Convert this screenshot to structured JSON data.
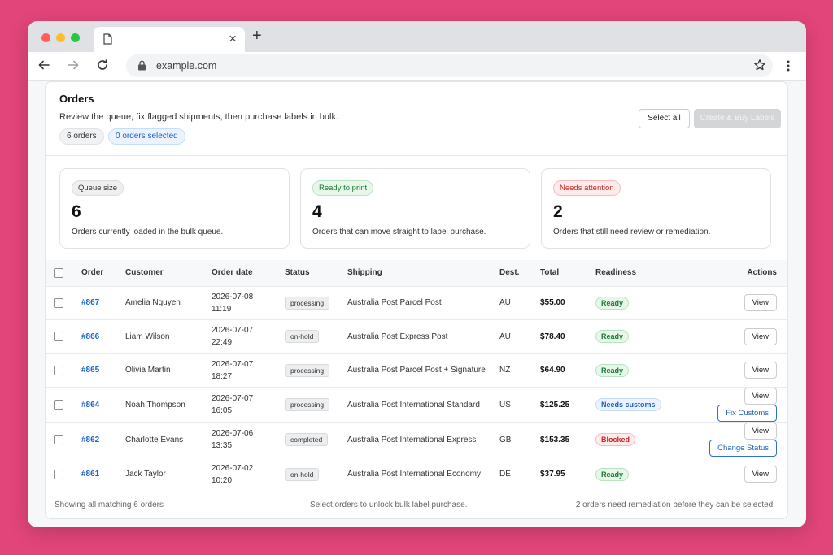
{
  "browser": {
    "tab_title": "",
    "url": "example.com",
    "icons": [
      "doc-icon",
      "close-icon",
      "plus-icon",
      "back-arrow-icon",
      "forward-arrow-icon",
      "reload-icon",
      "lock-icon",
      "star-icon",
      "kebab-menu-icon"
    ]
  },
  "header": {
    "title": "Orders",
    "subtitle": "Review the queue, fix flagged shipments, then purchase labels in bulk.",
    "count_pill": "6 orders",
    "selected_pill": "0 orders selected",
    "select_all_label": "Select all",
    "buy_label": "Create & Buy Labels"
  },
  "stats": [
    {
      "tag": "Queue size",
      "value": "6",
      "desc": "Orders currently loaded in the bulk queue."
    },
    {
      "tag": "Ready to print",
      "value": "4",
      "desc": "Orders that can move straight to label purchase."
    },
    {
      "tag": "Needs attention",
      "value": "2",
      "desc": "Orders that still need review or remediation."
    }
  ],
  "table": {
    "headers": {
      "order": "Order",
      "customer": "Customer",
      "date": "Order date",
      "status": "Status",
      "shipping": "Shipping",
      "dest": "Dest.",
      "total": "Total",
      "readiness": "Readiness",
      "actions": "Actions"
    },
    "rows": [
      {
        "order": "#867",
        "customer": "Amelia Nguyen",
        "date": "2026-07-08",
        "time": "11:19",
        "status": "processing",
        "shipping": "Australia Post Parcel Post",
        "dest": "AU",
        "total": "$55.00",
        "readiness": "Ready",
        "view": "View",
        "extra": ""
      },
      {
        "order": "#866",
        "customer": "Liam Wilson",
        "date": "2026-07-07",
        "time": "22:49",
        "status": "on-hold",
        "shipping": "Australia Post Express Post",
        "dest": "AU",
        "total": "$78.40",
        "readiness": "Ready",
        "view": "View",
        "extra": ""
      },
      {
        "order": "#865",
        "customer": "Olivia Martin",
        "date": "2026-07-07",
        "time": "18:27",
        "status": "processing",
        "shipping": "Australia Post Parcel Post + Signature",
        "dest": "NZ",
        "total": "$64.90",
        "readiness": "Ready",
        "view": "View",
        "extra": ""
      },
      {
        "order": "#864",
        "customer": "Noah Thompson",
        "date": "2026-07-07",
        "time": "16:05",
        "status": "processing",
        "shipping": "Australia Post International Standard",
        "dest": "US",
        "total": "$125.25",
        "readiness": "Needs customs",
        "view": "View",
        "extra": "Fix Customs"
      },
      {
        "order": "#862",
        "customer": "Charlotte Evans",
        "date": "2026-07-06",
        "time": "13:35",
        "status": "completed",
        "shipping": "Australia Post International Express",
        "dest": "GB",
        "total": "$153.35",
        "readiness": "Blocked",
        "view": "View",
        "extra": "Change Status"
      },
      {
        "order": "#861",
        "customer": "Jack Taylor",
        "date": "2026-07-02",
        "time": "10:20",
        "status": "on-hold",
        "shipping": "Australia Post International Economy",
        "dest": "DE",
        "total": "$37.95",
        "readiness": "Ready",
        "view": "View",
        "extra": ""
      }
    ]
  },
  "footer": {
    "left": "Showing all matching 6 orders",
    "middle": "Select orders to unlock bulk label purchase.",
    "right": "2 orders need remediation before they can be selected."
  },
  "colors": {
    "background": "#e2457a",
    "link": "#1a62c9",
    "ready": "#1b7a32",
    "needs_customs": "#1f5fbf",
    "blocked": "#c62828"
  }
}
